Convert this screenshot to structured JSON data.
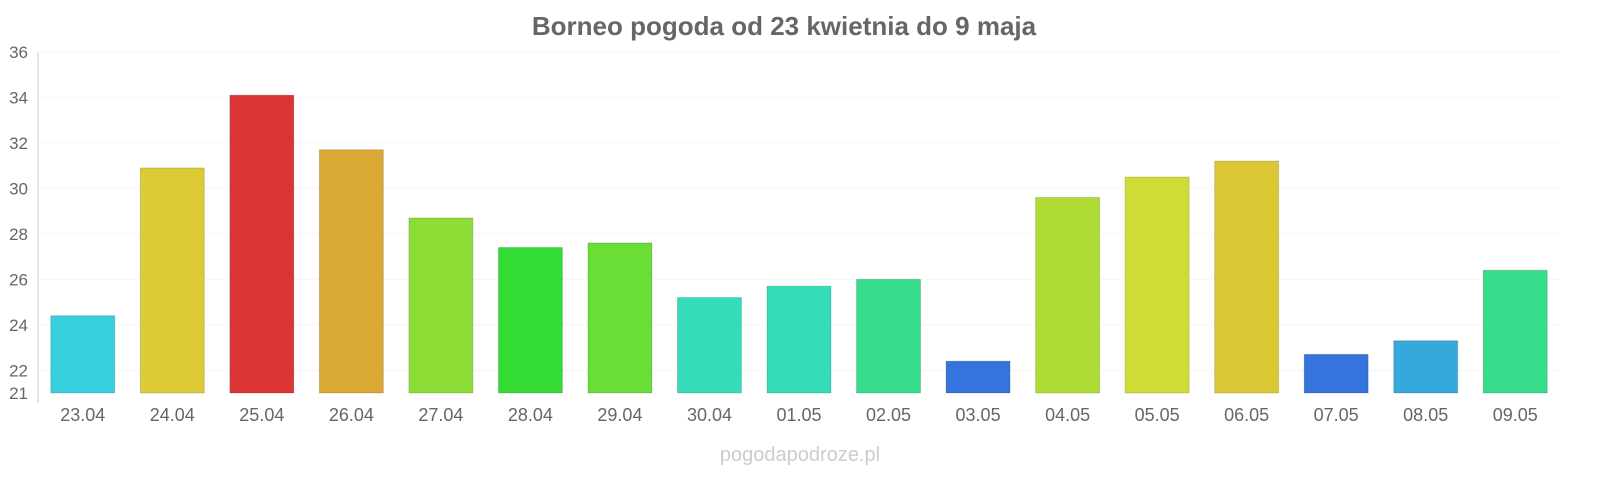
{
  "chart_data": {
    "type": "bar",
    "title": "Borneo pogoda od 23 kwietnia do 9 maja",
    "xlabel": "",
    "ylabel": "",
    "ylim": [
      21,
      36
    ],
    "yticks": [
      21,
      22,
      24,
      26,
      28,
      30,
      32,
      34,
      36
    ],
    "grid": true,
    "categories": [
      "23.04",
      "24.04",
      "25.04",
      "26.04",
      "27.04",
      "28.04",
      "29.04",
      "30.04",
      "01.05",
      "02.05",
      "03.05",
      "04.05",
      "05.05",
      "06.05",
      "07.05",
      "08.05",
      "09.05"
    ],
    "values": [
      24.4,
      30.9,
      34.1,
      31.7,
      28.7,
      27.4,
      27.6,
      25.2,
      25.7,
      26.0,
      22.4,
      29.6,
      30.5,
      31.2,
      22.7,
      23.3,
      26.4
    ],
    "colors": [
      "#36cfdc",
      "#dccb35",
      "#dc3535",
      "#dbaa35",
      "#8ddc35",
      "#35dc35",
      "#6ade35",
      "#35dcb8",
      "#35dcb8",
      "#35dc8a",
      "#3574dc",
      "#aedc35",
      "#d0dc35",
      "#dcc835",
      "#3574dc",
      "#35a8dc",
      "#35dc8a"
    ]
  },
  "watermark": "pogodapodroze.pl"
}
